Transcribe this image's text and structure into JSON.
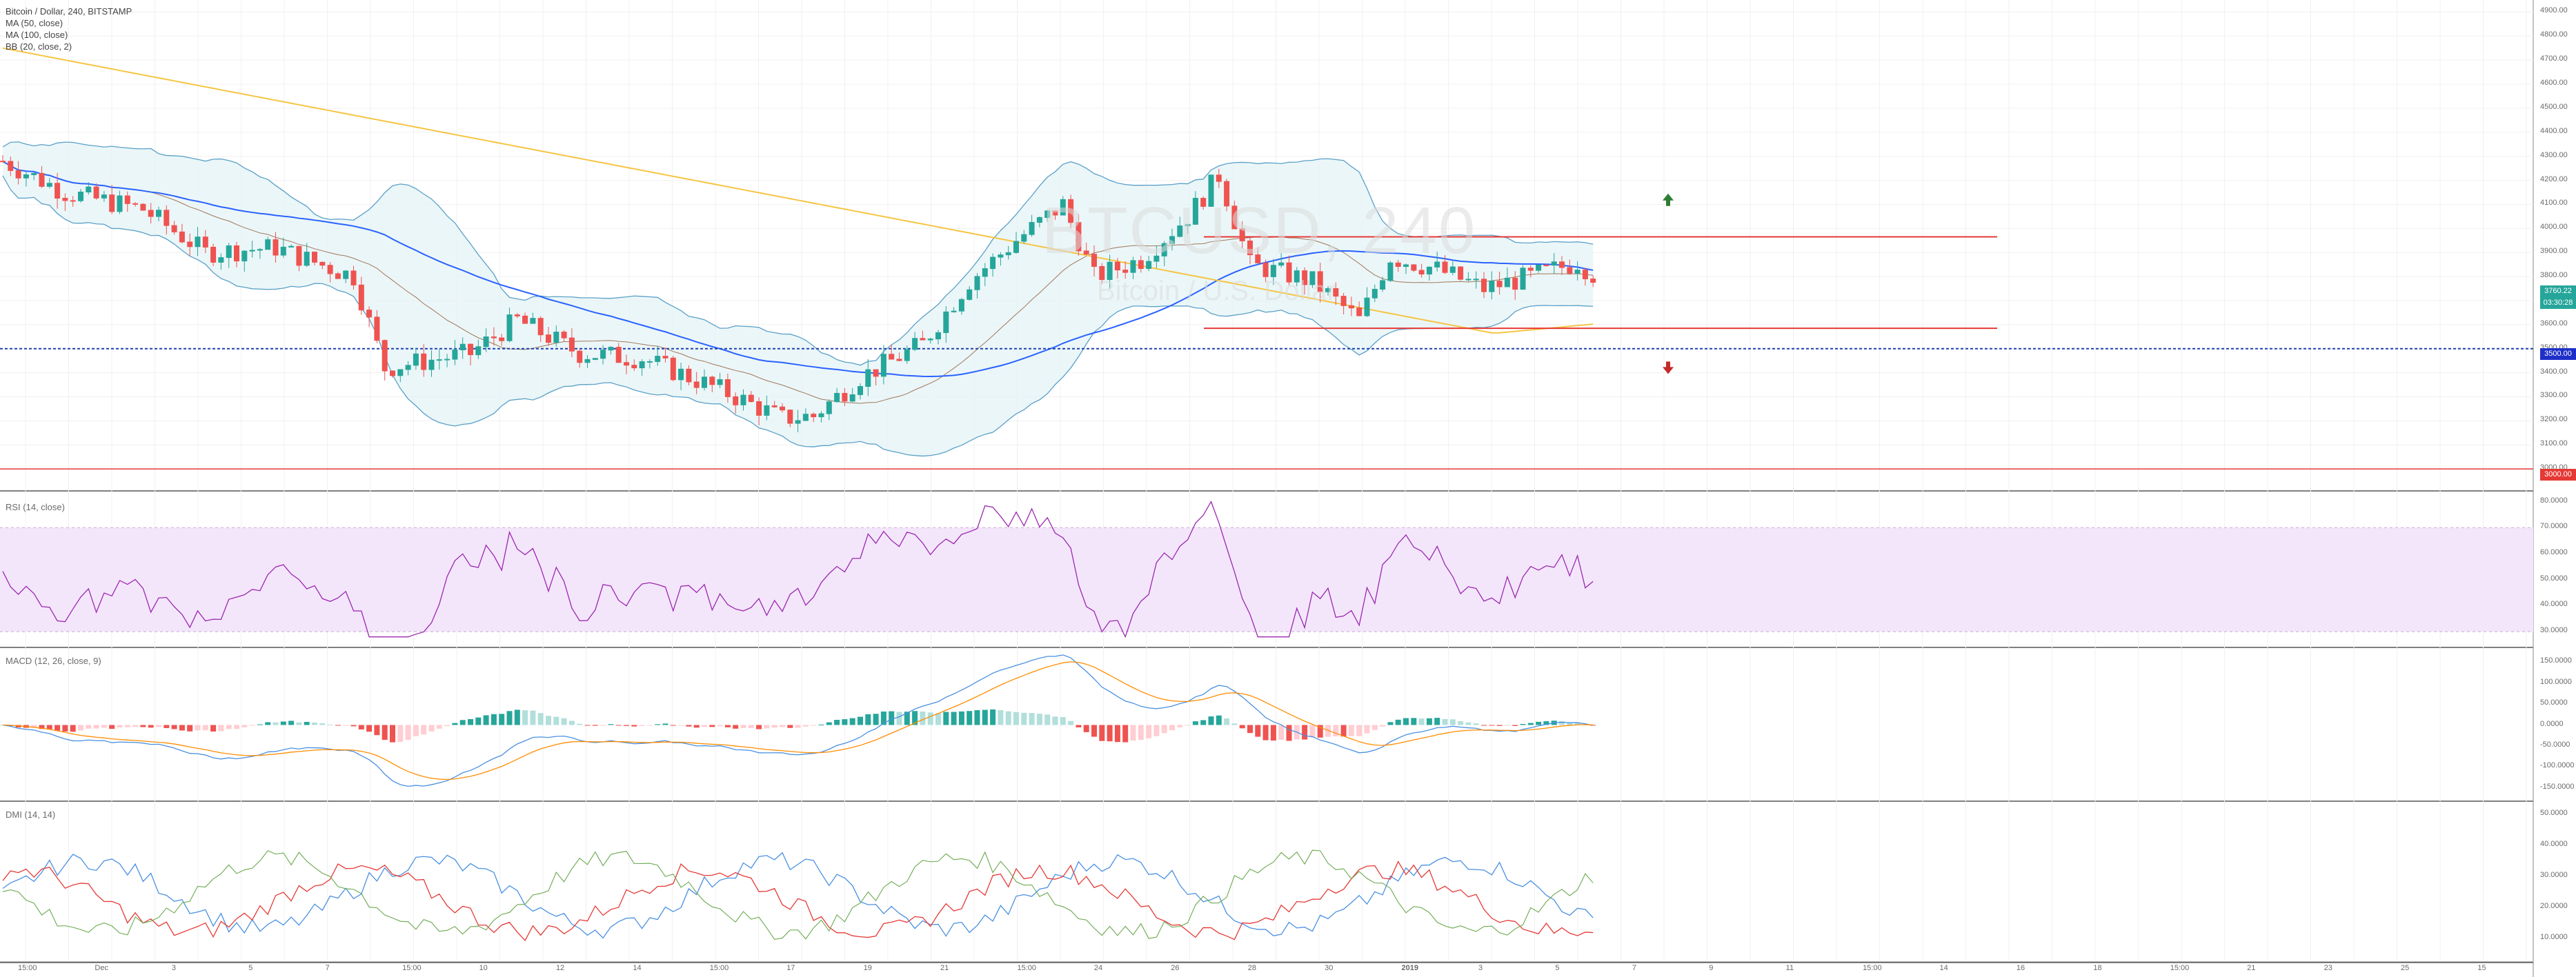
{
  "header": {
    "symbol_line": "Bitcoin / Dollar, 240, BITSTAMP",
    "ma50": "MA (50, close)",
    "ma100": "MA (100, close)",
    "bb": "BB (20, close, 2)"
  },
  "watermark": {
    "main": "BTCUSD, 240",
    "sub": "Bitcoin / U.S. Dollar"
  },
  "colors": {
    "up": "#26a69a",
    "down": "#ef5350",
    "ma50": "#2962ff",
    "ma100": "#f5c542",
    "bb": "#5aa0c8",
    "bb_fill": "#e6f4f6",
    "rsi": "#9c27b0",
    "rsi_band": "#f3e6fb",
    "hline_red": "#e53935",
    "hline_blue": "#1e40af",
    "macd": "#4a90e2",
    "signal": "#ff8c00",
    "plus_di": "#4a90e2",
    "minus_di": "#e53935",
    "adx": "#6aa84f"
  },
  "price_axis": {
    "ticks": [
      "4900.00",
      "4800.00",
      "4700.00",
      "4600.00",
      "4500.00",
      "4400.00",
      "4300.00",
      "4200.00",
      "4100.00",
      "4000.00",
      "3900.00",
      "3800.00",
      "3700.00",
      "3600.00",
      "3500.00",
      "3400.00",
      "3300.00",
      "3200.00",
      "3100.00",
      "3000.00"
    ],
    "price_tag": "3760.22",
    "countdown": "03:30:28",
    "blue_tag": "3500.00",
    "red_tag": "3000.00"
  },
  "rsi": {
    "label": "RSI (14, close)",
    "ticks": [
      "80.0000",
      "70.0000",
      "60.0000",
      "50.0000",
      "40.0000",
      "30.0000"
    ]
  },
  "macd": {
    "label": "MACD (12, 26, close, 9)",
    "ticks": [
      "150.0000",
      "100.0000",
      "50.0000",
      "0.0000",
      "-50.0000",
      "-100.0000",
      "-150.0000"
    ]
  },
  "dmi": {
    "label": "DMI (14, 14)",
    "ticks": [
      "50.0000",
      "40.0000",
      "30.0000",
      "20.0000",
      "10.0000"
    ]
  },
  "time_axis": {
    "labels": [
      "15:00",
      "Dec",
      "3",
      "5",
      "7",
      "15:00",
      "10",
      "12",
      "14",
      "15:00",
      "17",
      "19",
      "21",
      "15:00",
      "24",
      "26",
      "28",
      "30",
      "2019",
      "3",
      "5",
      "7",
      "9",
      "11",
      "15:00",
      "14",
      "16",
      "18",
      "15:00",
      "21",
      "23",
      "25",
      "15"
    ]
  }
}
